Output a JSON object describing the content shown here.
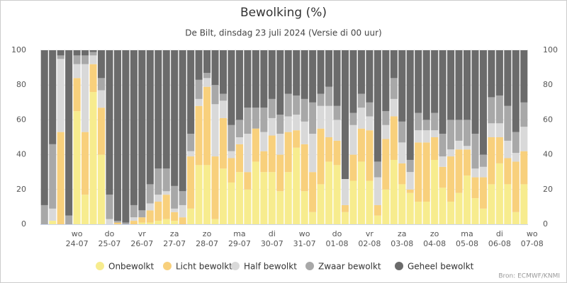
{
  "chart_data": {
    "type": "stacked_bar",
    "title": "Bewolking (%)",
    "subtitle": "De Bilt, dinsdag 23 juli 2024 (Versie di 00 uur)",
    "source": "Bron: ECMWF/KNMI",
    "categories": [
      null,
      null,
      null,
      null,
      "wo\n24-07",
      null,
      null,
      null,
      "do\n25-07",
      null,
      null,
      null,
      "vr\n26-07",
      null,
      null,
      null,
      "za\n27-07",
      null,
      null,
      null,
      "zo\n28-07",
      null,
      null,
      null,
      "ma\n29-07",
      null,
      null,
      null,
      "di\n30-07",
      null,
      null,
      null,
      "wo\n31-07",
      null,
      null,
      null,
      "do\n01-08",
      null,
      null,
      null,
      "vr\n02-08",
      null,
      null,
      null,
      "za\n03-08",
      null,
      null,
      null,
      "zo\n04-08",
      null,
      null,
      null,
      "ma\n05-08",
      null,
      null,
      null,
      "di\n06-08",
      null,
      null,
      null,
      "wo\n07-08"
    ],
    "series": [
      {
        "name": "Onbewolkt",
        "color": "#f7ec8e",
        "values": [
          0,
          2,
          0,
          0,
          65,
          17,
          76,
          40,
          0,
          0,
          0,
          0,
          1,
          1,
          2,
          3,
          2,
          0,
          9,
          34,
          34,
          3,
          32,
          24,
          30,
          20,
          36,
          30,
          30,
          19,
          30,
          44,
          19,
          7,
          23,
          36,
          34,
          7,
          25,
          36,
          25,
          5,
          20,
          37,
          23,
          18,
          13,
          13,
          37,
          21,
          13,
          18,
          28,
          15,
          9,
          23,
          35,
          23,
          7,
          23,
          null
        ]
      },
      {
        "name": "Licht bewolkt",
        "color": "#f8d07c",
        "values": [
          0,
          0,
          53,
          0,
          19,
          36,
          16,
          27,
          0,
          1,
          0,
          2,
          3,
          7,
          11,
          14,
          5,
          4,
          30,
          34,
          45,
          36,
          29,
          14,
          16,
          10,
          19,
          12,
          21,
          21,
          23,
          10,
          27,
          23,
          32,
          14,
          14,
          4,
          15,
          19,
          29,
          6,
          29,
          25,
          12,
          2,
          34,
          34,
          13,
          12,
          26,
          25,
          15,
          12,
          18,
          27,
          15,
          15,
          29,
          19,
          null
        ]
      },
      {
        "name": "Half bewolkt",
        "color": "#d9d9d9",
        "values": [
          0,
          7,
          42,
          0,
          8,
          39,
          5,
          10,
          3,
          0,
          0,
          2,
          0,
          4,
          4,
          2,
          2,
          7,
          3,
          4,
          5,
          30,
          10,
          4,
          4,
          22,
          0,
          11,
          10,
          12,
          9,
          9,
          13,
          22,
          13,
          18,
          12,
          15,
          17,
          12,
          8,
          16,
          8,
          10,
          12,
          10,
          7,
          7,
          4,
          6,
          4,
          5,
          2,
          5,
          6,
          8,
          8,
          10,
          5,
          14,
          null
        ]
      },
      {
        "name": "Zwaar bewolkt",
        "color": "#a8a8a8",
        "values": [
          11,
          37,
          2,
          5,
          5,
          5,
          2,
          7,
          14,
          1,
          1,
          7,
          4,
          11,
          15,
          13,
          13,
          8,
          10,
          11,
          3,
          11,
          4,
          15,
          10,
          15,
          12,
          14,
          11,
          11,
          13,
          11,
          13,
          18,
          7,
          11,
          8,
          0,
          7,
          8,
          8,
          9,
          8,
          12,
          12,
          7,
          10,
          6,
          10,
          13,
          17,
          12,
          15,
          20,
          7,
          15,
          16,
          20,
          12,
          14,
          null
        ]
      },
      {
        "name": "Geheel bewolkt",
        "color": "#6b6b6b",
        "values": [
          89,
          54,
          3,
          95,
          3,
          3,
          1,
          16,
          83,
          98,
          99,
          89,
          92,
          77,
          68,
          68,
          78,
          81,
          48,
          17,
          13,
          20,
          25,
          43,
          40,
          33,
          33,
          33,
          28,
          37,
          25,
          26,
          28,
          30,
          25,
          21,
          32,
          74,
          36,
          25,
          30,
          64,
          35,
          16,
          41,
          63,
          36,
          40,
          36,
          48,
          40,
          40,
          40,
          48,
          60,
          27,
          26,
          32,
          47,
          30,
          null
        ]
      }
    ],
    "ylim": [
      0,
      100
    ],
    "yticks": [
      0,
      20,
      40,
      60,
      80,
      100
    ],
    "grid": true
  }
}
